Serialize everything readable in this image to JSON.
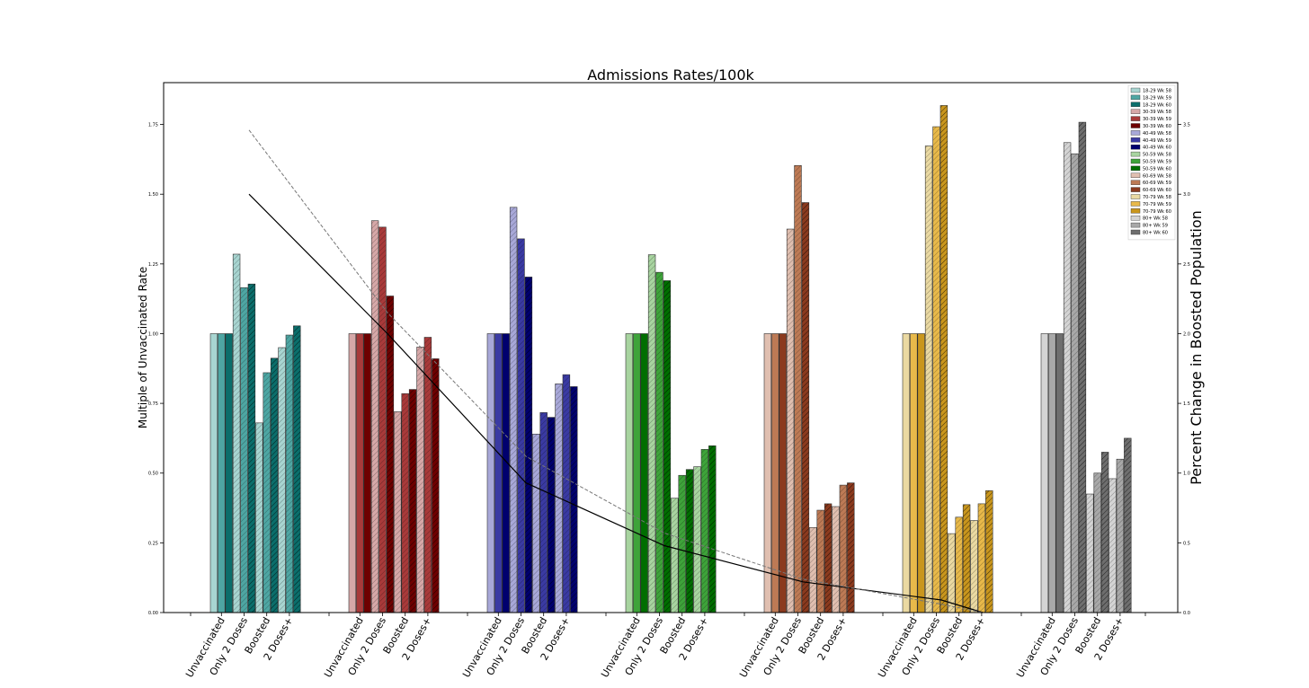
{
  "chart_data": {
    "type": "bar",
    "title": "Admissions Rates/100k",
    "ylabel": "Multiple of Unvaccinated Rate",
    "y2label": "Percent Change in Boosted Population",
    "ylim": [
      0,
      1.9
    ],
    "y2lim": [
      0,
      3.8
    ],
    "yticks": [
      "0.00",
      "0.25",
      "0.50",
      "0.75",
      "1.00",
      "1.25",
      "1.50",
      "1.75"
    ],
    "y2ticks": [
      "0.0",
      "0.5",
      "1.0",
      "1.5",
      "2.0",
      "2.5",
      "3.0",
      "3.5"
    ],
    "categories": [
      "Unvaccinated",
      "Only 2 Doses",
      "Boosted",
      "2 Doses+"
    ],
    "legend_position": "top-right",
    "groups": [
      {
        "age": "18-29",
        "colors": [
          "#a8d5d1",
          "#4ea6a3",
          "#0b6e6b"
        ],
        "series": [
          {
            "name": "18-29 Wk 58",
            "values": [
              1.0,
              1.285,
              0.68,
              0.95
            ]
          },
          {
            "name": "18-29 Wk 59",
            "values": [
              1.0,
              1.165,
              0.86,
              0.995
            ]
          },
          {
            "name": "18-29 Wk 60",
            "values": [
              1.0,
              1.178,
              0.912,
              1.028
            ]
          }
        ]
      },
      {
        "age": "30-39",
        "colors": [
          "#d6a8a8",
          "#a83a3a",
          "#6e0000"
        ],
        "series": [
          {
            "name": "30-39 Wk 58",
            "values": [
              1.0,
              1.405,
              0.72,
              0.952
            ]
          },
          {
            "name": "30-39 Wk 59",
            "values": [
              1.0,
              1.382,
              0.785,
              0.987
            ]
          },
          {
            "name": "30-39 Wk 60",
            "values": [
              1.0,
              1.135,
              0.8,
              0.91
            ]
          }
        ]
      },
      {
        "age": "40-49",
        "colors": [
          "#a8a8d8",
          "#3a3aa3",
          "#00006e"
        ],
        "series": [
          {
            "name": "40-49 Wk 58",
            "values": [
              1.0,
              1.453,
              0.64,
              0.82
            ]
          },
          {
            "name": "40-49 Wk 59",
            "values": [
              1.0,
              1.34,
              0.717,
              0.853
            ]
          },
          {
            "name": "40-49 Wk 60",
            "values": [
              1.0,
              1.203,
              0.7,
              0.81
            ]
          }
        ]
      },
      {
        "age": "50-59",
        "colors": [
          "#a8d4a0",
          "#3ea33a",
          "#006e00"
        ],
        "series": [
          {
            "name": "50-59 Wk 58",
            "values": [
              1.0,
              1.283,
              0.41,
              0.523
            ]
          },
          {
            "name": "50-59 Wk 59",
            "values": [
              1.0,
              1.22,
              0.492,
              0.585
            ]
          },
          {
            "name": "50-59 Wk 60",
            "values": [
              1.0,
              1.19,
              0.513,
              0.598
            ]
          }
        ]
      },
      {
        "age": "60-69",
        "colors": [
          "#e0bfb0",
          "#bd7a55",
          "#8b3a1e"
        ],
        "series": [
          {
            "name": "60-69 Wk 58",
            "values": [
              1.0,
              1.375,
              0.305,
              0.38
            ]
          },
          {
            "name": "60-69 Wk 59",
            "values": [
              1.0,
              1.603,
              0.367,
              0.457
            ]
          },
          {
            "name": "60-69 Wk 60",
            "values": [
              1.0,
              1.47,
              0.39,
              0.465
            ]
          }
        ]
      },
      {
        "age": "70-79",
        "colors": [
          "#ead9a2",
          "#e8b94a",
          "#c9961d"
        ],
        "series": [
          {
            "name": "70-79 Wk 58",
            "values": [
              1.0,
              1.673,
              0.283,
              0.33
            ]
          },
          {
            "name": "70-79 Wk 59",
            "values": [
              1.0,
              1.742,
              0.342,
              0.39
            ]
          },
          {
            "name": "70-79 Wk 60",
            "values": [
              1.0,
              1.818,
              0.387,
              0.437
            ]
          }
        ]
      },
      {
        "age": "80+",
        "colors": [
          "#d4d4d4",
          "#a8a8a8",
          "#6e6e6e"
        ],
        "series": [
          {
            "name": "80+ Wk 58",
            "values": [
              1.0,
              1.685,
              0.425,
              0.48
            ]
          },
          {
            "name": "80+ Wk 59",
            "values": [
              1.0,
              1.645,
              0.5,
              0.55
            ]
          },
          {
            "name": "80+ Wk 60",
            "values": [
              1.0,
              1.758,
              0.575,
              0.625
            ]
          }
        ]
      }
    ],
    "lines": [
      {
        "axis": "right",
        "style": "solid",
        "x": [
          0,
          1,
          2,
          3,
          4,
          5,
          5.3
        ],
        "values": [
          3.0,
          2.0,
          0.93,
          0.48,
          0.22,
          0.09,
          0.0
        ]
      },
      {
        "axis": "right",
        "style": "dashed",
        "x": [
          0,
          1,
          2,
          3,
          4,
          5,
          5.3
        ],
        "values": [
          3.46,
          2.15,
          1.12,
          0.57,
          0.24,
          0.06,
          0.0
        ]
      }
    ]
  }
}
